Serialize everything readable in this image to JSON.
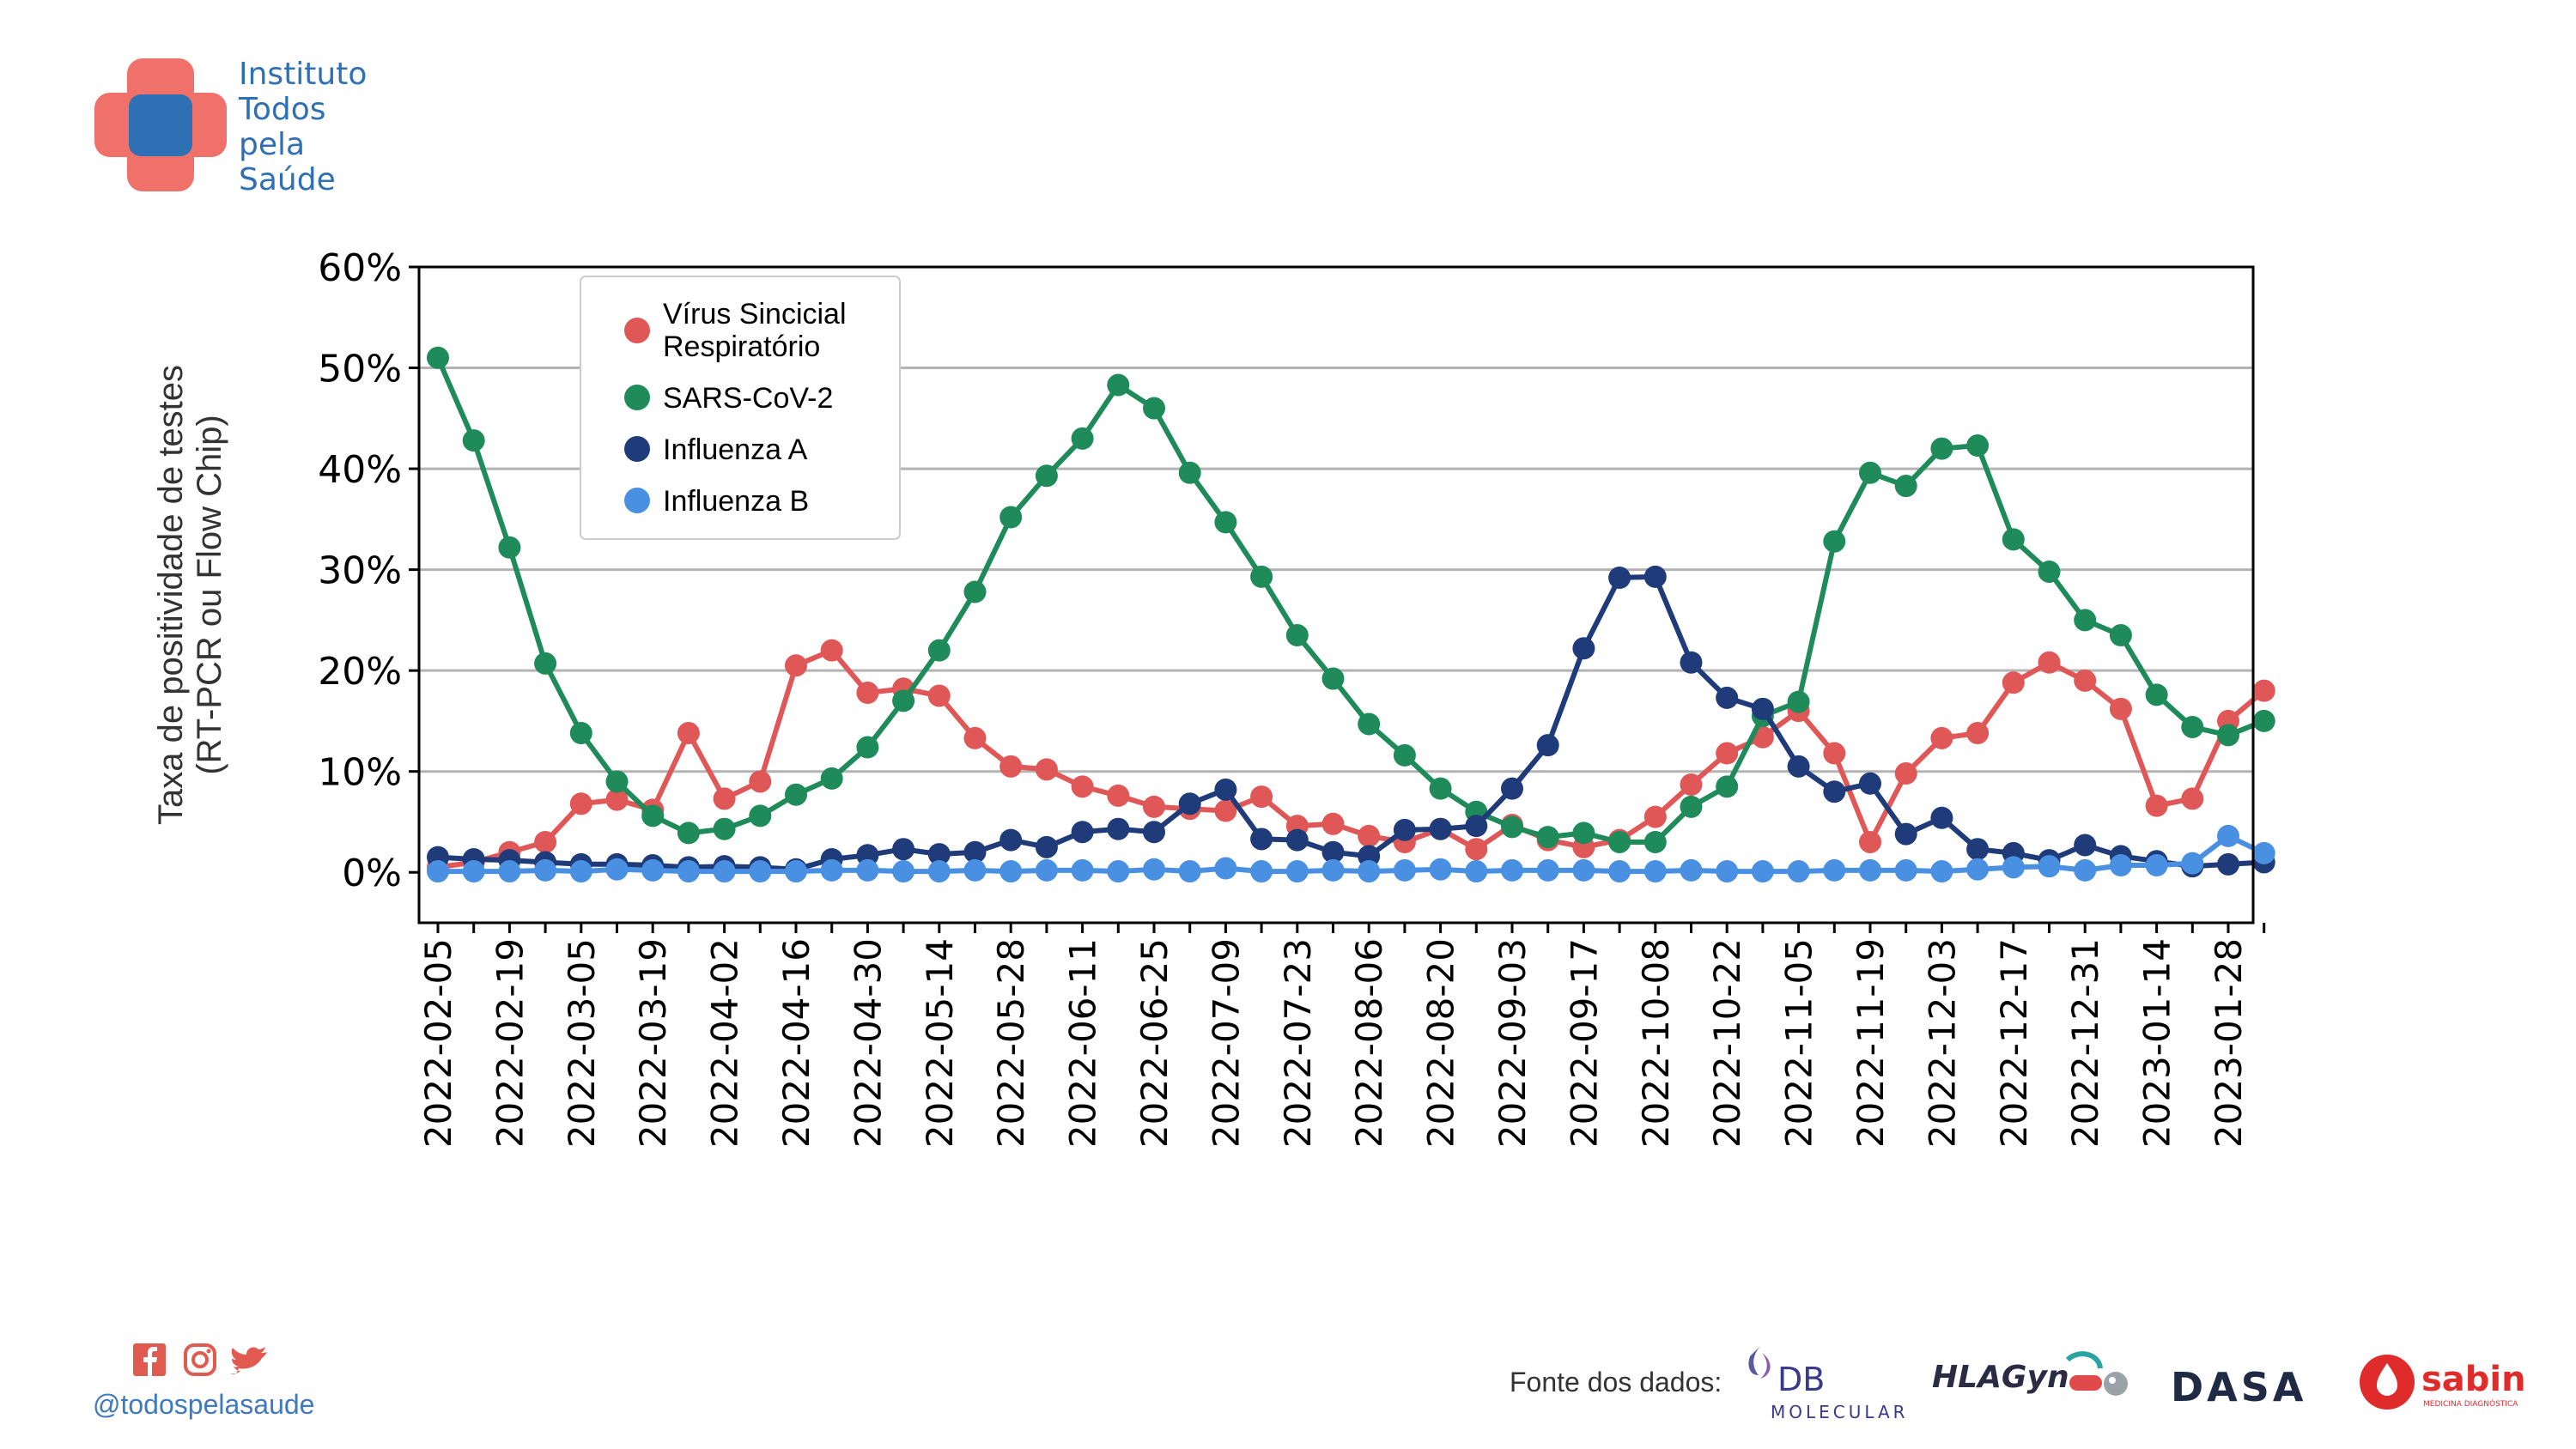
{
  "brand": {
    "lines": [
      "Instituto",
      "Todos",
      "pela",
      "Saúde"
    ],
    "logo_colors": {
      "red": "#f0706a",
      "blue": "#2f6fb3"
    }
  },
  "colors": {
    "rsv": "#e05757",
    "sars": "#1f8a5a",
    "fluA": "#1f3b7a",
    "fluB": "#4a90e2"
  },
  "chart_data": {
    "type": "line",
    "title": "",
    "xlabel": "",
    "ylabel_line1": "Taxa de positividade de testes",
    "ylabel_line2": "(RT-PCR ou Flow Chip)",
    "ylim": [
      -5,
      60
    ],
    "yticks": [
      0,
      10,
      20,
      30,
      40,
      50,
      60
    ],
    "ytick_labels": [
      "0%",
      "10%",
      "20%",
      "30%",
      "40%",
      "50%",
      "60%"
    ],
    "grid": "horizontal",
    "legend_position": "top-left",
    "x_labels": [
      "2022-02-05",
      "2022-02-19",
      "2022-03-05",
      "2022-03-19",
      "2022-04-02",
      "2022-04-16",
      "2022-04-30",
      "2022-05-14",
      "2022-05-28",
      "2022-06-11",
      "2022-06-25",
      "2022-07-09",
      "2022-07-23",
      "2022-08-06",
      "2022-08-20",
      "2022-09-03",
      "2022-09-17",
      "2022-10-08",
      "2022-10-22",
      "2022-11-05",
      "2022-11-19",
      "2022-12-03",
      "2022-12-17",
      "2022-12-31",
      "2023-01-14",
      "2023-01-28"
    ],
    "series": [
      {
        "name": "Vírus Sincicial Respiratório",
        "name_lines": [
          "Vírus Sincicial",
          "Respiratório"
        ],
        "color": "#e05757",
        "values": [
          0.5,
          1.0,
          2.0,
          3.0,
          6.8,
          7.2,
          6.2,
          13.8,
          7.3,
          9.0,
          20.5,
          22.0,
          17.8,
          18.2,
          17.5,
          13.3,
          10.5,
          10.2,
          8.5,
          7.6,
          6.5,
          6.3,
          6.1,
          7.5,
          4.6,
          4.8,
          3.6,
          3.0,
          4.3,
          2.3,
          4.7,
          3.2,
          2.5,
          3.2,
          5.5,
          8.7,
          11.8,
          13.4,
          16.0,
          11.8,
          3.0,
          9.8,
          13.3,
          13.8,
          18.8,
          20.8,
          19.0,
          16.2,
          6.6,
          7.3,
          15.0,
          18.0
        ]
      },
      {
        "name": "SARS-CoV-2",
        "color": "#1f8a5a",
        "values": [
          51.0,
          42.8,
          32.2,
          20.7,
          13.8,
          9.0,
          5.6,
          3.9,
          4.3,
          5.6,
          7.7,
          9.3,
          12.4,
          17.0,
          22.0,
          27.8,
          35.2,
          39.3,
          43.0,
          48.3,
          46.0,
          39.6,
          34.7,
          29.3,
          23.5,
          19.2,
          14.7,
          11.6,
          8.3,
          6.0,
          4.5,
          3.5,
          3.9,
          3.0,
          3.0,
          6.5,
          8.5,
          15.5,
          16.9,
          32.8,
          39.6,
          38.3,
          42.0,
          42.3,
          33.0,
          29.8,
          25.0,
          23.5,
          17.6,
          14.4,
          13.6,
          15.0
        ]
      },
      {
        "name": "Influenza A",
        "color": "#1f3b7a",
        "values": [
          1.5,
          1.3,
          1.2,
          1.0,
          0.8,
          0.8,
          0.7,
          0.5,
          0.6,
          0.5,
          0.3,
          1.3,
          1.7,
          2.3,
          1.8,
          2.0,
          3.2,
          2.5,
          4.0,
          4.3,
          4.0,
          6.8,
          8.2,
          3.3,
          3.2,
          2.0,
          1.6,
          4.2,
          4.3,
          4.6,
          8.3,
          12.6,
          22.2,
          29.2,
          29.3,
          20.8,
          17.3,
          16.2,
          10.5,
          8.0,
          8.8,
          3.8,
          5.4,
          2.3,
          1.9,
          1.2,
          2.7,
          1.6,
          1.1,
          0.6,
          0.8,
          1.0
        ]
      },
      {
        "name": "Influenza B",
        "color": "#4a90e2",
        "values": [
          0.1,
          0.1,
          0.1,
          0.2,
          0.1,
          0.3,
          0.2,
          0.1,
          0.1,
          0.1,
          0.1,
          0.2,
          0.2,
          0.1,
          0.1,
          0.2,
          0.1,
          0.2,
          0.2,
          0.1,
          0.3,
          0.1,
          0.4,
          0.1,
          0.1,
          0.2,
          0.1,
          0.2,
          0.3,
          0.1,
          0.2,
          0.2,
          0.2,
          0.1,
          0.1,
          0.2,
          0.1,
          0.1,
          0.1,
          0.2,
          0.2,
          0.2,
          0.1,
          0.3,
          0.5,
          0.6,
          0.2,
          0.7,
          0.7,
          0.9,
          3.6,
          1.9
        ]
      }
    ]
  },
  "footer": {
    "social_icons": [
      "facebook-icon",
      "instagram-icon",
      "twitter-icon"
    ],
    "social_color": "#e05a4f",
    "handle": "@todospelasaude",
    "source_label": "Fonte dos dados:",
    "partners": {
      "db_molecular": {
        "top": "DB",
        "bottom": "MOLECULAR"
      },
      "hlagyn": "HLAGyn",
      "dasa": "DASA",
      "sabin": {
        "name": "sabin",
        "tagline": "MEDICINA DIAGNÓSTICA"
      }
    }
  }
}
